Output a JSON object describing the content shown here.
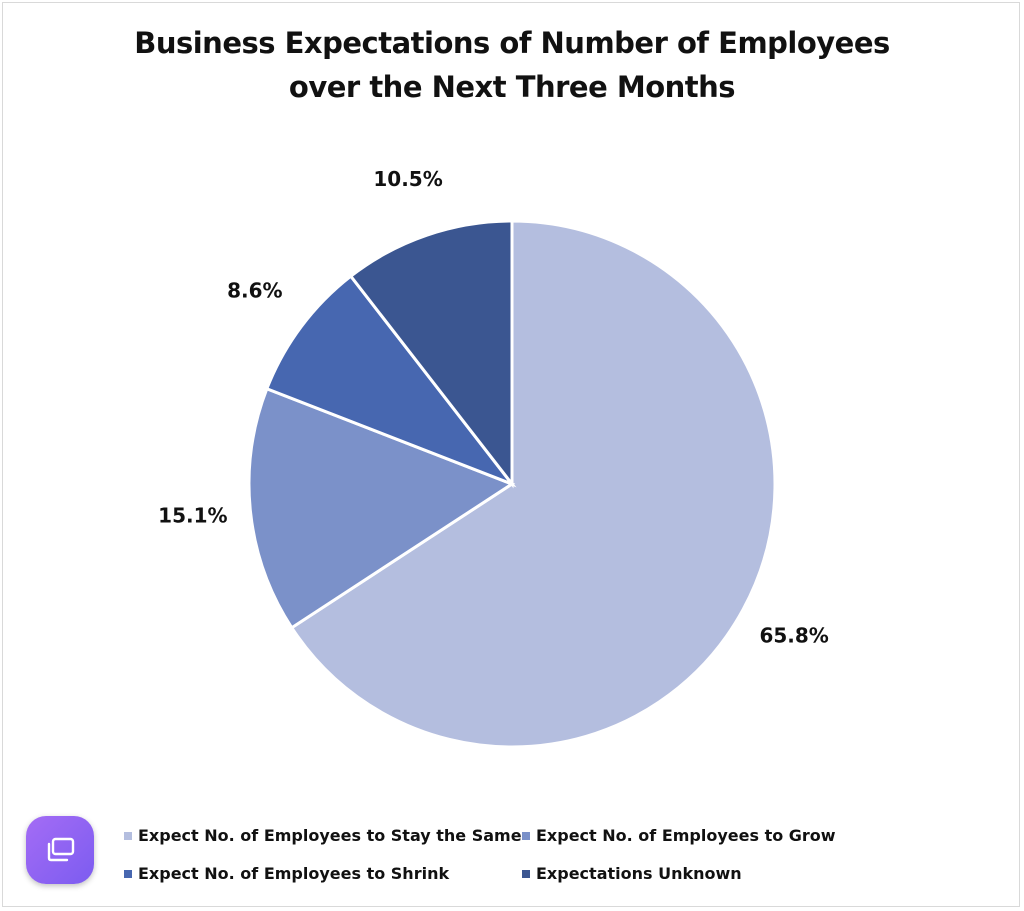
{
  "chart_data": {
    "type": "pie",
    "title_lines": [
      "Business Expectations of Number of Employees",
      "over the Next Three Months"
    ],
    "slices": [
      {
        "label": "Expect No. of Employees to Stay the Same",
        "value": 65.8,
        "display": "65.8%",
        "color": "#b4bedf"
      },
      {
        "label": "Expect No. of Employees to Grow",
        "value": 15.1,
        "display": "15.1%",
        "color": "#7b91c9"
      },
      {
        "label": "Expect No. of Employees to Shrink",
        "value": 8.6,
        "display": "8.6%",
        "color": "#4767b0"
      },
      {
        "label": "Expectations Unknown",
        "value": 10.5,
        "display": "10.5%",
        "color": "#3b5691"
      }
    ],
    "start": "top, clockwise",
    "legend_position": "bottom"
  },
  "overlay": {
    "app_button_icon": "window-stack-icon"
  }
}
